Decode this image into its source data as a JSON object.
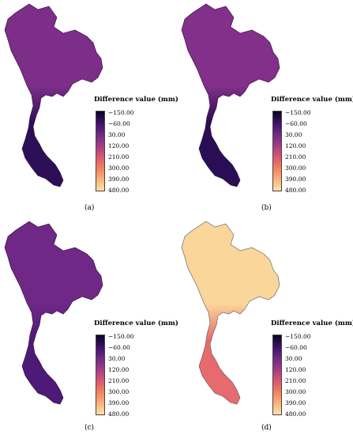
{
  "legend": {
    "title": "Difference value (mm)",
    "ticks": [
      "−150.00",
      "−60.00",
      "30.00",
      "120.00",
      "210.00",
      "300.00",
      "390.00",
      "480.00"
    ],
    "colors": [
      "#0b0620",
      "#3a1065",
      "#6e2a85",
      "#a33b87",
      "#d8566f",
      "#f2805c",
      "#fbb27a",
      "#fde4a8"
    ]
  },
  "panels": [
    {
      "label": "(a)",
      "fill_north": "#7c2e89",
      "fill_south": "#2d0f58",
      "stroke": "#2b0d3a"
    },
    {
      "label": "(b)",
      "fill_north": "#823089",
      "fill_south": "#2a0e55",
      "stroke": "#2b0d3a"
    },
    {
      "label": "(c)",
      "fill_north": "#6f2886",
      "fill_south": "#4e1a78",
      "stroke": "#2b0d3a"
    },
    {
      "label": "(d)",
      "fill_north": "#fbd69a",
      "fill_south": "#e76b6e",
      "stroke": "#555555"
    }
  ]
}
